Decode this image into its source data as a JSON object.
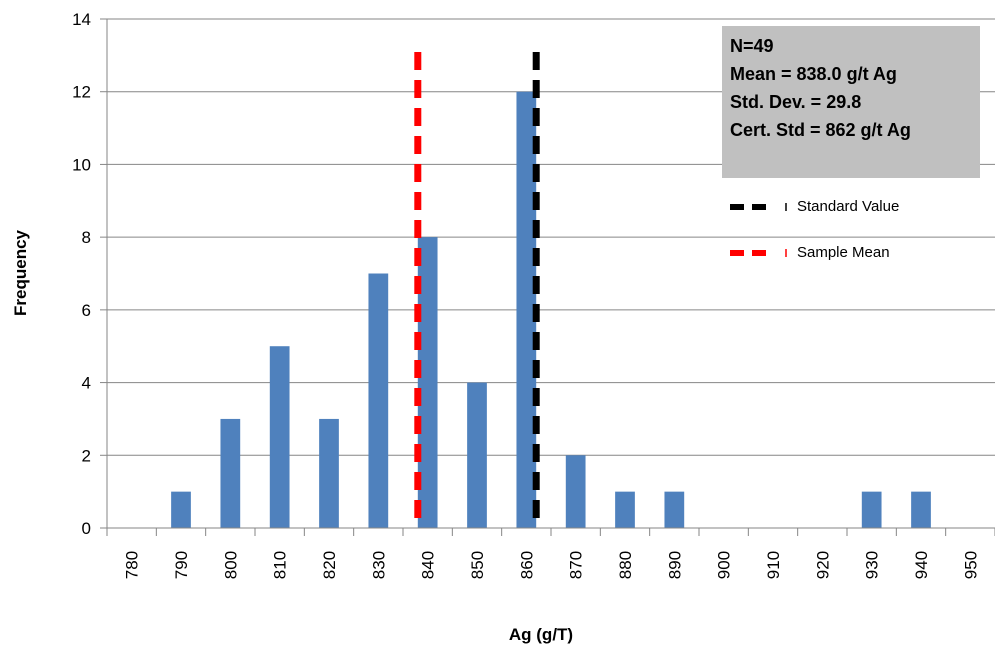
{
  "chart_data": {
    "type": "bar",
    "xlabel": "Ag (g/T)",
    "ylabel": "Frequency",
    "ylim": [
      0,
      14
    ],
    "yticks": [
      0,
      2,
      4,
      6,
      8,
      10,
      12,
      14
    ],
    "categories": [
      "780",
      "790",
      "800",
      "810",
      "820",
      "830",
      "840",
      "850",
      "860",
      "870",
      "880",
      "890",
      "900",
      "910",
      "920",
      "930",
      "940",
      "950"
    ],
    "values": [
      0,
      1,
      3,
      5,
      3,
      7,
      8,
      4,
      12,
      2,
      1,
      1,
      0,
      0,
      0,
      1,
      1,
      0
    ],
    "bar_color": "#4f81bd",
    "grid": true,
    "reference_lines": [
      {
        "name": "Standard Value",
        "x": 862,
        "color": "#000000",
        "style": "dashed"
      },
      {
        "name": "Sample Mean",
        "x": 838.0,
        "color": "#ff0000",
        "style": "dashed"
      }
    ],
    "stats_box": {
      "lines": [
        "N=49",
        "Mean = 838.0 g/t Ag",
        "Std. Dev. = 29.8",
        "Cert. Std = 862 g/t Ag"
      ],
      "background": "#c0c0c0"
    },
    "legend": {
      "position": "top-right",
      "entries": [
        {
          "label": "Standard Value",
          "color": "#000000"
        },
        {
          "label": "Sample Mean",
          "color": "#ff0000"
        }
      ]
    }
  }
}
